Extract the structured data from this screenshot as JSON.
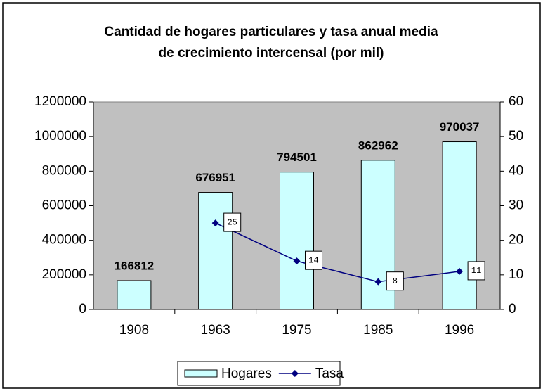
{
  "chart_data": {
    "type": "bar",
    "title": [
      "Cantidad de hogares particulares y tasa anual media",
      "de crecimiento intercensal (por mil)"
    ],
    "categories": [
      "1908",
      "1963",
      "1975",
      "1985",
      "1996"
    ],
    "series": [
      {
        "name": "Hogares",
        "type": "bar",
        "color": "#ccffff",
        "values": [
          166812,
          676951,
          794501,
          862962,
          970037
        ]
      },
      {
        "name": "Tasa",
        "type": "line",
        "axis": "y2",
        "color": "#000080",
        "values": [
          null,
          25,
          14,
          8,
          11
        ]
      }
    ],
    "ylim": [
      0,
      1200000
    ],
    "yticks": [
      0,
      200000,
      400000,
      600000,
      800000,
      1000000,
      1200000
    ],
    "y2lim": [
      0,
      60
    ],
    "y2ticks": [
      0,
      10,
      20,
      30,
      40,
      50,
      60
    ],
    "legend": "bottom",
    "plot_background": "#c0c0c0"
  }
}
